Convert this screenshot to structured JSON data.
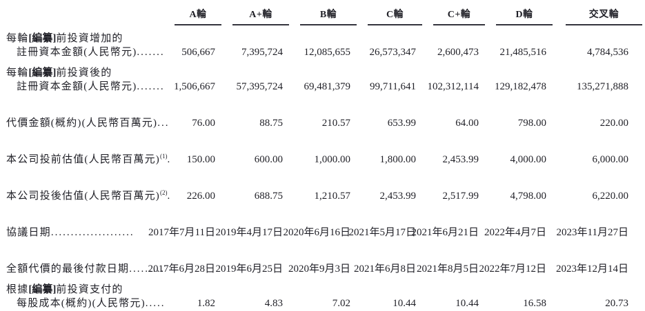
{
  "table": {
    "columns": [
      "A輪",
      "A+輪",
      "B輪",
      "C輪",
      "C+輪",
      "D輪",
      "交叉輪"
    ],
    "rows": [
      {
        "line1_pre": "每輪",
        "line1_redact": "[編纂]",
        "line1_post": "前投資增加的",
        "line2": "註冊資本金額(人民幣元)",
        "line2_dots": ".......",
        "values": [
          "506,667",
          "7,395,724",
          "12,085,655",
          "26,573,347",
          "2,600,473",
          "21,485,516",
          "4,784,536"
        ]
      },
      {
        "line1_pre": "每輪",
        "line1_redact": "[編纂]",
        "line1_post": "前投資後的",
        "line2": "註冊資本金額(人民幣元)",
        "line2_dots": ".......",
        "values": [
          "1,506,667",
          "57,395,724",
          "69,481,379",
          "99,711,641",
          "102,312,114",
          "129,182,478",
          "135,271,888"
        ]
      },
      {
        "label": "代價金額(概約)(人民幣百萬元)",
        "dots": "...",
        "values": [
          "76.00",
          "88.75",
          "210.57",
          "653.99",
          "64.00",
          "798.00",
          "220.00"
        ]
      },
      {
        "label": "本公司投前估值(人民幣百萬元)",
        "sup": "(1)",
        "dots": ".",
        "values": [
          "150.00",
          "600.00",
          "1,000.00",
          "1,800.00",
          "2,453.99",
          "4,000.00",
          "6,000.00"
        ]
      },
      {
        "label": "本公司投後估值(人民幣百萬元)",
        "sup": "(2)",
        "dots": ".",
        "values": [
          "226.00",
          "688.75",
          "1,210.57",
          "2,453.99",
          "2,517.99",
          "4,798.00",
          "6,220.00"
        ]
      },
      {
        "label": "協議日期",
        "dots": ".....................",
        "values": [
          "2017年7月11日",
          "2019年4月17日",
          "2020年6月16日",
          "2021年5月17日",
          "2021年6月21日",
          "2022年4月7日",
          "2023年11月27日"
        ]
      },
      {
        "label": "全額代價的最後付款日期",
        "dots": ".........",
        "values": [
          "2017年6月28日",
          "2019年6月25日",
          "2020年9月3日",
          "2021年6月8日",
          "2021年8月5日",
          "2022年7月12日",
          "2023年12月14日"
        ]
      },
      {
        "line1_pre": "根據",
        "line1_redact": "[編纂]",
        "line1_post": "前投資支付的",
        "line2": "每股成本(概約)(人民幣元)",
        "line2_dots": ".....",
        "values": [
          "1.82",
          "4.83",
          "7.02",
          "10.44",
          "10.44",
          "16.58",
          "20.73"
        ]
      }
    ]
  }
}
